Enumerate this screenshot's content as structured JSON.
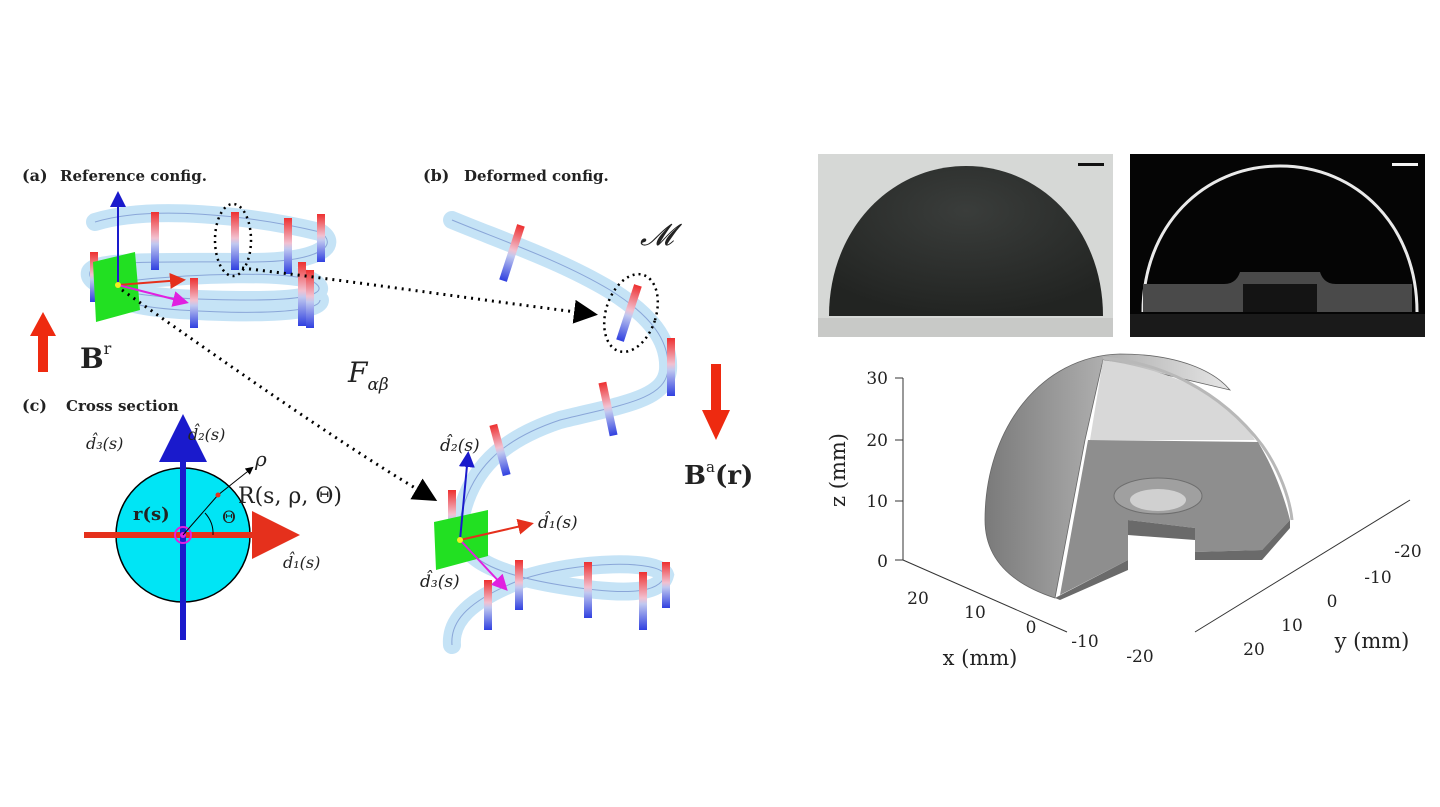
{
  "panels": {
    "a": {
      "tag": "(a)",
      "title": "Reference config."
    },
    "b": {
      "tag": "(b)",
      "title": "Deformed config."
    },
    "c": {
      "tag": "(c)",
      "title": "Cross section"
    }
  },
  "symbols": {
    "B_ref_main": "B",
    "B_ref_sup": "r",
    "B_app_main": "B",
    "B_app_sup": "a",
    "B_app_arg": "(r)",
    "F": "F",
    "F_sub": "αβ",
    "M": "𝓜",
    "d1": "d̂₁(s)",
    "d2": "d̂₂(s)",
    "d3": "d̂₃(s)",
    "r_s": "r(s)",
    "rho": "ρ",
    "R": "R(s, ρ, Θ)",
    "theta": "Θ"
  },
  "plot3d": {
    "z_axis_label": "z (mm)",
    "x_axis_label": "x (mm)",
    "y_axis_label": "y (mm)",
    "z_ticks": [
      "30",
      "20",
      "10",
      "0"
    ],
    "x_ticks": [
      "20",
      "10",
      "0",
      "-10",
      "-20"
    ],
    "y_ticks": [
      "-20",
      "-10",
      "0",
      "10",
      "20"
    ]
  },
  "colors": {
    "cyan": "#00e5f5",
    "red": "#e5301c",
    "blue": "#1a1acc",
    "magenta": "#e020e0",
    "green": "#22e022",
    "tube": "#bfe0f5"
  }
}
